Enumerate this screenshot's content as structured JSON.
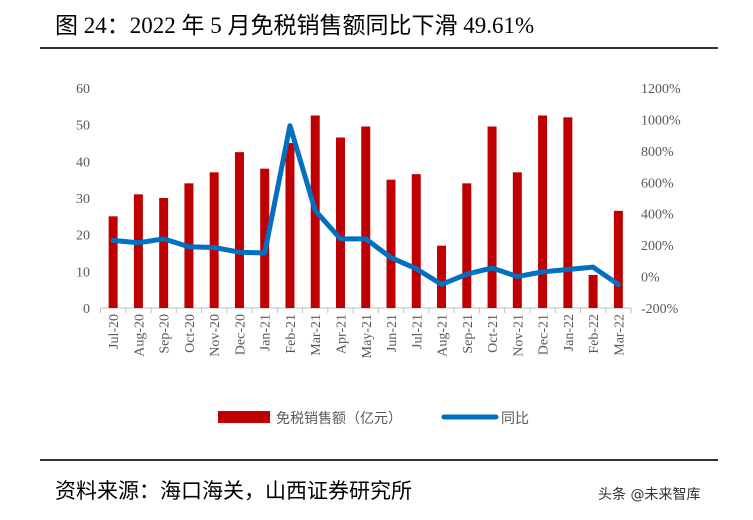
{
  "title": "图 24：2022 年 5 月免税销售额同比下滑 49.61%",
  "source": "资料来源：海口海关，山西证券研究所",
  "watermark": "头条 @未来智库",
  "chart_data": {
    "type": "bar+line",
    "categories": [
      "Jul-20",
      "Aug-20",
      "Sep-20",
      "Oct-20",
      "Nov-20",
      "Dec-20",
      "Jan-21",
      "Feb-21",
      "Mar-21",
      "Apr-21",
      "May-21",
      "Jun-21",
      "Jul-21",
      "Aug-21",
      "Sep-21",
      "Oct-21",
      "Nov-21",
      "Dec-21",
      "Jan-22",
      "Feb-22",
      "Mar-22"
    ],
    "series": [
      {
        "name": "免税销售额（亿元）",
        "type": "bar",
        "axis": "left",
        "color": "#C00000",
        "values": [
          25,
          31,
          30,
          34,
          37,
          42.5,
          38,
          45,
          52.5,
          46.5,
          49.5,
          35,
          36.5,
          17,
          34,
          49.5,
          37,
          52.5,
          52,
          9,
          26.5
        ]
      },
      {
        "name": "同比",
        "type": "line",
        "axis": "right",
        "color": "#0070C0",
        "values": [
          230,
          215,
          240,
          190,
          185,
          155,
          150,
          960,
          420,
          240,
          240,
          120,
          50,
          -50,
          15,
          55,
          0,
          30,
          45,
          60,
          -50
        ]
      }
    ],
    "ylim_left": [
      0,
      60
    ],
    "yticks_left": [
      "0",
      "10",
      "20",
      "30",
      "40",
      "50",
      "60"
    ],
    "ylim_right": [
      -200,
      1200
    ],
    "yticks_right": [
      "-200%",
      "0%",
      "200%",
      "400%",
      "600%",
      "800%",
      "1000%",
      "1200%"
    ],
    "grid": false,
    "legend": "bottom"
  }
}
